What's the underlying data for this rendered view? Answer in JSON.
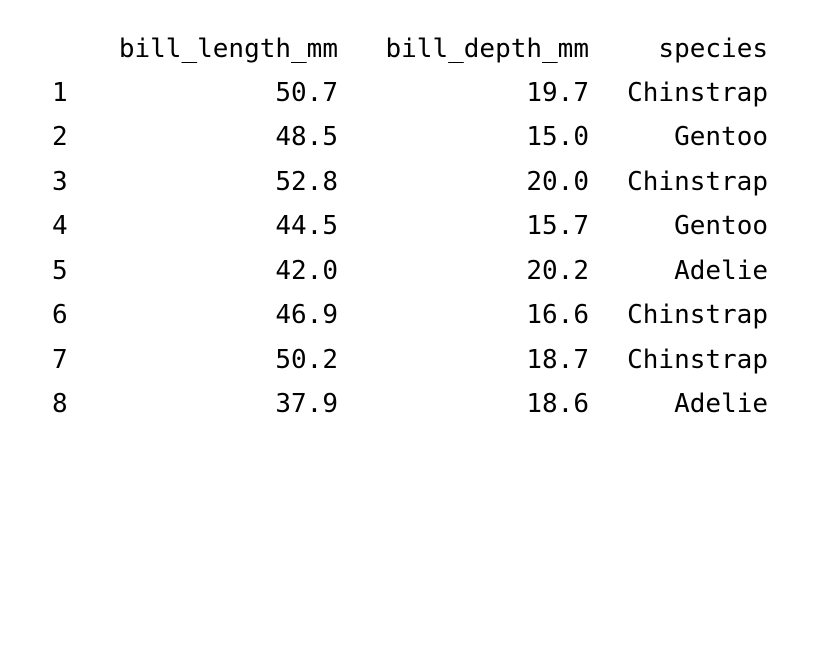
{
  "table": {
    "columns": [
      "bill_length_mm",
      "bill_depth_mm",
      "species"
    ],
    "rows": [
      {
        "index": "1",
        "bill_length_mm": "50.7",
        "bill_depth_mm": "19.7",
        "species": "Chinstrap"
      },
      {
        "index": "2",
        "bill_length_mm": "48.5",
        "bill_depth_mm": "15.0",
        "species": "Gentoo"
      },
      {
        "index": "3",
        "bill_length_mm": "52.8",
        "bill_depth_mm": "20.0",
        "species": "Chinstrap"
      },
      {
        "index": "4",
        "bill_length_mm": "44.5",
        "bill_depth_mm": "15.7",
        "species": "Gentoo"
      },
      {
        "index": "5",
        "bill_length_mm": "42.0",
        "bill_depth_mm": "20.2",
        "species": "Adelie"
      },
      {
        "index": "6",
        "bill_length_mm": "46.9",
        "bill_depth_mm": "16.6",
        "species": "Chinstrap"
      },
      {
        "index": "7",
        "bill_length_mm": "50.2",
        "bill_depth_mm": "18.7",
        "species": "Chinstrap"
      },
      {
        "index": "8",
        "bill_length_mm": "37.9",
        "bill_depth_mm": "18.6",
        "species": "Adelie"
      }
    ]
  }
}
